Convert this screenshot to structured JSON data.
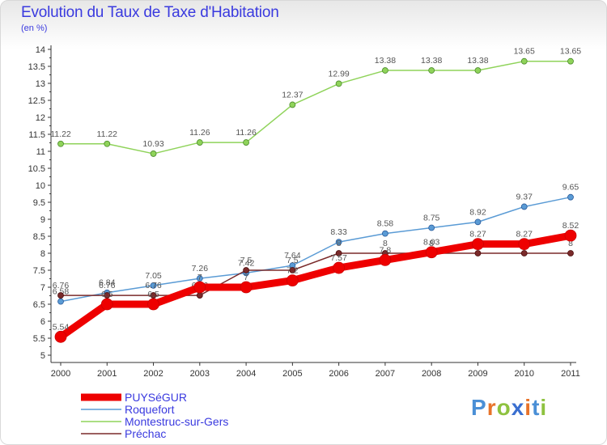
{
  "header": {
    "title": "Evolution du Taux de Taxe d'Habitation",
    "subtitle": "(en %)"
  },
  "brand": {
    "letters": [
      "P",
      "r",
      "o",
      "x",
      "i",
      "t",
      "i"
    ],
    "colors": [
      "#4a8fd6",
      "#e8732a",
      "#8ec23f",
      "#3a6fd0",
      "#e8732a",
      "#4a8fd6",
      "#8ec23f"
    ]
  },
  "chart_data": {
    "type": "line",
    "title": "Evolution du Taux de Taxe d'Habitation",
    "subtitle": "(en %)",
    "xlabel": "",
    "ylabel": "",
    "x": [
      "2000",
      "2001",
      "2002",
      "2003",
      "2004",
      "2005",
      "2006",
      "2007",
      "2008",
      "2009",
      "2010",
      "2011"
    ],
    "ylim": [
      5,
      14
    ],
    "yticks": [
      "5",
      "5.5",
      "6",
      "6.5",
      "7",
      "7.5",
      "8",
      "8.5",
      "9",
      "9.5",
      "10",
      "10.5",
      "11",
      "11.5",
      "12",
      "12.5",
      "13",
      "13.5",
      "14"
    ],
    "grid": false,
    "legend_position": "bottom-left",
    "series": [
      {
        "name": "Montestruc-sur-Gers",
        "color": "#8fd35a",
        "values": [
          11.22,
          11.22,
          10.93,
          11.26,
          11.26,
          12.37,
          12.99,
          13.38,
          13.38,
          13.38,
          13.65,
          13.65
        ],
        "labels": [
          "11.22",
          "11.22",
          "10.93",
          "11.26",
          "11.26",
          "12.37",
          "12.99",
          "13.38",
          "13.38",
          "13.38",
          "13.65",
          "13.65"
        ]
      },
      {
        "name": "Roquefort",
        "color": "#5a9bd5",
        "values": [
          6.58,
          6.84,
          7.05,
          7.26,
          7.42,
          7.64,
          8.33,
          8.58,
          8.75,
          8.92,
          9.37,
          9.65
        ],
        "labels": [
          "6.58",
          "6.84",
          "7.05",
          "7.26",
          "7.42",
          "7.64",
          "8.33",
          "8.58",
          "8.75",
          "8.92",
          "9.37",
          "9.65"
        ]
      },
      {
        "name": "Préchac",
        "color": "#7a2a2a",
        "values": [
          6.76,
          6.76,
          6.76,
          6.76,
          7.5,
          7.5,
          8,
          8,
          8,
          8,
          8,
          8
        ],
        "labels": [
          "6.76",
          "6.76",
          "6.76",
          "6.76",
          "7.5",
          "7.5",
          "8",
          "8",
          "8",
          "8",
          "8",
          "8"
        ]
      },
      {
        "name": "PUYSéGUR",
        "color": "#ee0000",
        "values": [
          5.54,
          6.5,
          6.5,
          7,
          7,
          7.2,
          7.57,
          7.8,
          8.03,
          8.27,
          8.27,
          8.52
        ],
        "labels": [
          "5.54",
          "6.5",
          "6.5",
          "7",
          "7",
          "7.2",
          "7.57",
          "7.8",
          "8.03",
          "8.27",
          "8.27",
          "8.52"
        ]
      }
    ],
    "legend_order": [
      "PUYSéGUR",
      "Roquefort",
      "Montestruc-sur-Gers",
      "Préchac"
    ]
  }
}
